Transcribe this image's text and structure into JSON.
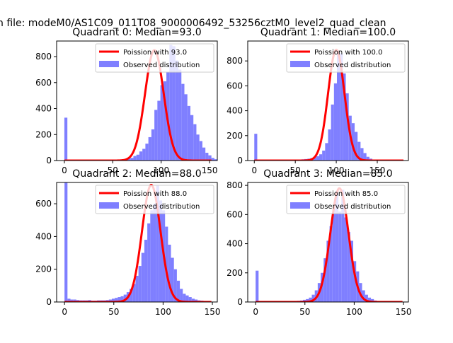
{
  "suptitle": "n file: modeM0/AS1C09_011T08_9000006492_53256cztM0_level2_quad_clean",
  "colors": {
    "bars": "#7f7fff",
    "curve": "#ff0000",
    "axis": "#000000"
  },
  "chart_data": [
    {
      "type": "bar",
      "title": "Quadrant 0: Median=93.0",
      "xlim": [
        -8,
        158
      ],
      "ylim": [
        0,
        920
      ],
      "xticks": [
        0,
        50,
        100,
        150
      ],
      "yticks": [
        0,
        200,
        400,
        600,
        800
      ],
      "bin_start": 0,
      "bin_width": 3.1,
      "values": [
        330,
        0,
        0,
        0,
        2,
        3,
        2,
        4,
        3,
        2,
        3,
        3,
        3,
        4,
        4,
        5,
        6,
        6,
        8,
        10,
        12,
        16,
        20,
        35,
        45,
        70,
        90,
        130,
        180,
        240,
        390,
        460,
        580,
        610,
        680,
        890,
        880,
        770,
        700,
        590,
        510,
        420,
        350,
        280,
        200,
        150,
        100,
        60,
        40,
        20,
        10
      ],
      "poisson_mean": 93.0,
      "poisson_peak": 850,
      "legend": [
        "Poission with 93.0",
        "Observed distribution"
      ]
    },
    {
      "type": "bar",
      "title": "Quadrant 1: Median=100.0",
      "xlim": [
        -8,
        188
      ],
      "ylim": [
        0,
        960
      ],
      "xticks": [
        0,
        50,
        100,
        150
      ],
      "yticks": [
        0,
        200,
        400,
        600,
        800
      ],
      "bin_start": 0,
      "bin_width": 3.6,
      "values": [
        215,
        0,
        0,
        0,
        0,
        2,
        3,
        3,
        3,
        3,
        4,
        4,
        5,
        6,
        7,
        8,
        10,
        12,
        15,
        20,
        25,
        35,
        50,
        80,
        140,
        250,
        450,
        620,
        880,
        860,
        700,
        540,
        360,
        300,
        230,
        150,
        100,
        60,
        30,
        15,
        8,
        5
      ],
      "poisson_mean": 100.0,
      "poisson_peak": 890,
      "legend": [
        "Poission with 100.0",
        "Observed distribution"
      ]
    },
    {
      "type": "bar",
      "title": "Quadrant 2: Median=88.0",
      "xlim": [
        -8,
        155
      ],
      "ylim": [
        0,
        730
      ],
      "xticks": [
        0,
        50,
        100,
        150
      ],
      "yticks": [
        0,
        200,
        400,
        600
      ],
      "bin_start": 0,
      "bin_width": 3.0,
      "values": [
        730,
        20,
        15,
        15,
        12,
        10,
        10,
        10,
        12,
        8,
        8,
        10,
        10,
        10,
        12,
        15,
        20,
        25,
        30,
        35,
        45,
        60,
        80,
        110,
        160,
        220,
        300,
        380,
        480,
        560,
        600,
        710,
        620,
        560,
        460,
        350,
        270,
        200,
        130,
        80,
        50,
        40,
        30,
        20,
        15,
        10,
        8,
        5,
        3
      ],
      "poisson_mean": 88.0,
      "poisson_peak": 715,
      "legend": [
        "Poission with 88.0",
        "Observed distribution"
      ]
    },
    {
      "type": "bar",
      "title": "Quadrant 3: Median=85.0",
      "xlim": [
        -8,
        155
      ],
      "ylim": [
        0,
        820
      ],
      "xticks": [
        0,
        50,
        100,
        150
      ],
      "yticks": [
        0,
        200,
        400,
        600,
        800
      ],
      "bin_start": 0,
      "bin_width": 3.0,
      "values": [
        215,
        0,
        0,
        0,
        0,
        2,
        3,
        3,
        3,
        3,
        4,
        4,
        5,
        6,
        8,
        10,
        15,
        20,
        30,
        50,
        80,
        130,
        200,
        300,
        420,
        520,
        640,
        760,
        620,
        770,
        580,
        480,
        420,
        280,
        210,
        130,
        80,
        50,
        30,
        20,
        10,
        5,
        3
      ],
      "poisson_mean": 85.0,
      "poisson_peak": 780,
      "legend": [
        "Poission with 85.0",
        "Observed distribution"
      ]
    }
  ]
}
